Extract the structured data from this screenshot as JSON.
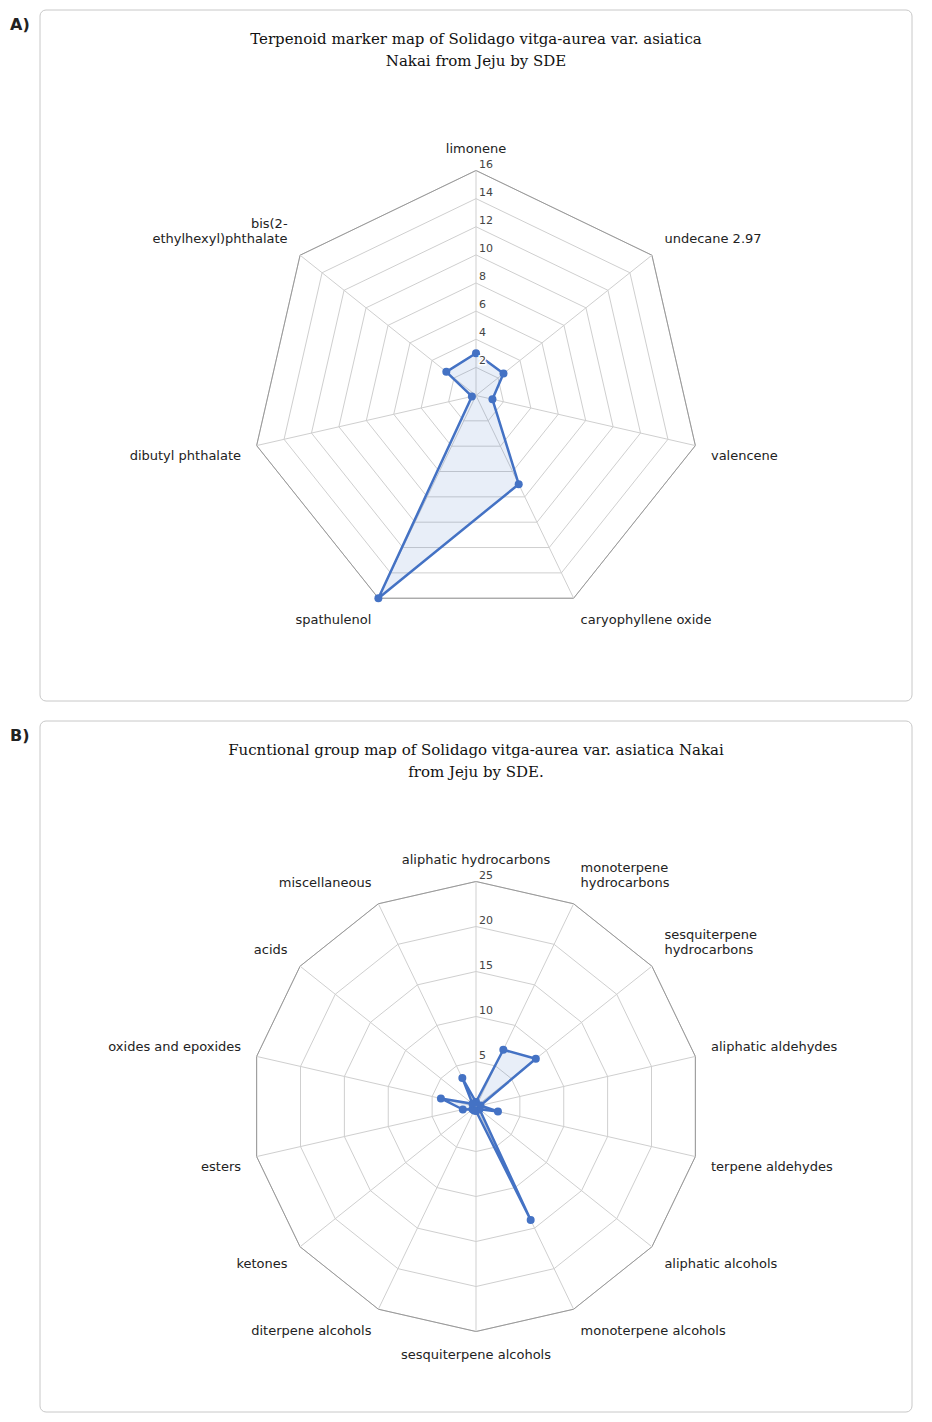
{
  "chart_data": [
    {
      "type": "radar",
      "title": "Terpenoid marker map of Solidago vitga-aurea var. asiatica",
      "subtitle": "Nakai from Jeju by SDE",
      "annotations": [
        "A)"
      ],
      "categories": [
        "limonene",
        "undecane 2.97",
        "valencene",
        "caryophyllene oxide",
        "spathulenol",
        "dibutyl phthalate",
        "bis(2-\nethylhexyl)phthalate"
      ],
      "values": [
        3.0,
        2.5,
        1.2,
        7.0,
        16.0,
        0.3,
        2.7
      ],
      "color": "#4472C4",
      "ylim": [
        0,
        16
      ],
      "yticks": [
        2,
        4,
        6,
        8,
        10,
        12,
        14,
        16
      ],
      "grid": true
    },
    {
      "type": "radar",
      "title": "Fucntional group map of Solidago vitga-aurea var. asiatica Nakai",
      "subtitle": "from Jeju by SDE.",
      "annotations": [
        "B)"
      ],
      "categories": [
        "aliphatic hydrocarbons",
        "monoterpene\nhydrocarbons",
        "sesquiterpene\nhydrocarbons",
        "aliphatic aldehydes",
        "terpene aldehydes",
        "aliphatic alcohols",
        "monoterpene alcohols",
        "sesquiterpene alcohols",
        "diterpene alcohols",
        "ketones",
        "esters",
        "oxides and epoxides",
        "acids",
        "miscellaneous"
      ],
      "values": [
        0.5,
        7.0,
        8.5,
        0.5,
        2.5,
        0.5,
        14.0,
        0.5,
        0.5,
        0.5,
        1.5,
        4.0,
        0.5,
        3.5
      ],
      "color": "#4472C4",
      "ylim": [
        0,
        25
      ],
      "yticks": [
        5,
        10,
        15,
        20,
        25
      ],
      "grid": true
    }
  ]
}
